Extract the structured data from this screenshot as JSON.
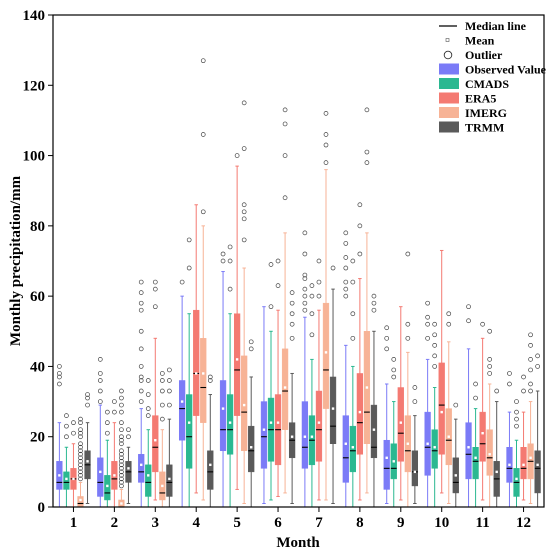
{
  "colors": {
    "observed": "#7b7bf7",
    "cmads": "#2bb891",
    "era5": "#f47a72",
    "imerg": "#f7b396",
    "trmm": "#5a5a5a",
    "mean_marker": "#ffffff",
    "outlier": "#444444"
  },
  "chart_data": {
    "type": "box",
    "title": "",
    "xlabel": "Month",
    "ylabel": "Monthly precipitation/mm",
    "ylim": [
      0,
      140
    ],
    "yticks": [
      0,
      20,
      40,
      60,
      80,
      100,
      120,
      140
    ],
    "grid": false,
    "legend_position": "top-right",
    "legend": [
      {
        "label": "Median line",
        "kind": "line"
      },
      {
        "label": "Mean",
        "kind": "mean"
      },
      {
        "label": "Outlier",
        "kind": "outlier"
      },
      {
        "label": "Observed Value",
        "kind": "box",
        "color_key": "observed"
      },
      {
        "label": "CMADS",
        "kind": "box",
        "color_key": "cmads"
      },
      {
        "label": "ERA5",
        "kind": "box",
        "color_key": "era5"
      },
      {
        "label": "IMERG",
        "kind": "box",
        "color_key": "imerg"
      },
      {
        "label": "TRMM",
        "kind": "box",
        "color_key": "trmm"
      }
    ],
    "categories": [
      "1",
      "2",
      "3",
      "4",
      "5",
      "6",
      "7",
      "8",
      "9",
      "10",
      "11",
      "12"
    ],
    "series": [
      {
        "name": "Observed Value",
        "color_key": "observed",
        "boxes": [
          {
            "whislo": 0,
            "q1": 5,
            "med": 7,
            "q3": 13,
            "whishi": 24,
            "mean": 9,
            "outliers": [
              35,
              37,
              38,
              40
            ]
          },
          {
            "whislo": 0,
            "q1": 3,
            "med": 7,
            "q3": 14,
            "whishi": 29,
            "mean": 10,
            "outliers": [
              30,
              33,
              36,
              38,
              42
            ]
          },
          {
            "whislo": 0,
            "q1": 7,
            "med": 10,
            "q3": 15,
            "whishi": 28,
            "mean": 12,
            "outliers": [
              30,
              33,
              36,
              37,
              40,
              45,
              50,
              56,
              58,
              61,
              64
            ]
          },
          {
            "whislo": 0,
            "q1": 19,
            "med": 28,
            "q3": 36,
            "whishi": 60,
            "mean": 30,
            "outliers": [
              64
            ]
          },
          {
            "whislo": 0,
            "q1": 16,
            "med": 22,
            "q3": 36,
            "whishi": 67,
            "mean": 28,
            "outliers": [
              70,
              72
            ]
          },
          {
            "whislo": 1,
            "q1": 11,
            "med": 20,
            "q3": 30,
            "whishi": 57,
            "mean": 22,
            "outliers": []
          },
          {
            "whislo": 0,
            "q1": 11,
            "med": 17,
            "q3": 30,
            "whishi": 54,
            "mean": 20,
            "outliers": [
              56,
              58,
              60,
              62,
              65,
              66,
              72,
              78
            ]
          },
          {
            "whislo": 0,
            "q1": 7,
            "med": 14,
            "q3": 26,
            "whishi": 46,
            "mean": 18,
            "outliers": [
              60,
              62,
              64,
              68,
              71,
              75,
              78
            ]
          },
          {
            "whislo": 1,
            "q1": 5,
            "med": 11,
            "q3": 19,
            "whishi": 35,
            "mean": 14,
            "outliers": [
              45,
              48,
              51
            ]
          },
          {
            "whislo": 0,
            "q1": 9,
            "med": 17,
            "q3": 27,
            "whishi": 42,
            "mean": 18,
            "outliers": [
              48,
              52,
              54,
              58
            ]
          },
          {
            "whislo": 0,
            "q1": 8,
            "med": 15,
            "q3": 24,
            "whishi": 45,
            "mean": 17,
            "outliers": [
              53,
              57
            ]
          },
          {
            "whislo": 0,
            "q1": 7,
            "med": 11,
            "q3": 17,
            "whishi": 27,
            "mean": 12,
            "outliers": [
              35,
              38
            ]
          }
        ]
      },
      {
        "name": "CMADS",
        "color_key": "cmads",
        "boxes": [
          {
            "whislo": 0,
            "q1": 5,
            "med": 7,
            "q3": 10,
            "whishi": 17,
            "mean": 8,
            "outliers": [
              20,
              23,
              26
            ]
          },
          {
            "whislo": 0,
            "q1": 2,
            "med": 4,
            "q3": 9,
            "whishi": 19,
            "mean": 6,
            "outliers": [
              21,
              24,
              27
            ]
          },
          {
            "whislo": 0,
            "q1": 3,
            "med": 7,
            "q3": 12,
            "whishi": 22,
            "mean": 9,
            "outliers": [
              26,
              28,
              32,
              36
            ]
          },
          {
            "whislo": 0,
            "q1": 11,
            "med": 20,
            "q3": 32,
            "whishi": 55,
            "mean": 24,
            "outliers": [
              68,
              76
            ]
          },
          {
            "whislo": 0,
            "q1": 15,
            "med": 22,
            "q3": 32,
            "whishi": 55,
            "mean": 24,
            "outliers": [
              62,
              70,
              74
            ]
          },
          {
            "whislo": 2,
            "q1": 13,
            "med": 22,
            "q3": 31,
            "whishi": 50,
            "mean": 24,
            "outliers": [
              57,
              69
            ]
          },
          {
            "whislo": 0,
            "q1": 12,
            "med": 19,
            "q3": 26,
            "whishi": 42,
            "mean": 20,
            "outliers": [
              49,
              55,
              60,
              63
            ]
          },
          {
            "whislo": 0,
            "q1": 10,
            "med": 16,
            "q3": 23,
            "whishi": 40,
            "mean": 17,
            "outliers": [
              48,
              55,
              64,
              70
            ]
          },
          {
            "whislo": 0,
            "q1": 8,
            "med": 11,
            "q3": 18,
            "whishi": 30,
            "mean": 13,
            "outliers": [
              37,
              39,
              42
            ]
          },
          {
            "whislo": 0,
            "q1": 11,
            "med": 16,
            "q3": 22,
            "whishi": 34,
            "mean": 17,
            "outliers": [
              40,
              43,
              46,
              49,
              52
            ]
          },
          {
            "whislo": 0,
            "q1": 8,
            "med": 13,
            "q3": 17,
            "whishi": 28,
            "mean": 14,
            "outliers": [
              31,
              35
            ]
          },
          {
            "whislo": 0,
            "q1": 3,
            "med": 7,
            "q3": 11,
            "whishi": 19,
            "mean": 8,
            "outliers": [
              23,
              25,
              27,
              30
            ]
          }
        ]
      },
      {
        "name": "ERA5",
        "color_key": "era5",
        "boxes": [
          {
            "whislo": 0,
            "q1": 5,
            "med": 8,
            "q3": 11,
            "whishi": 18,
            "mean": 8,
            "outliers": [
              21,
              24
            ]
          },
          {
            "whislo": 0,
            "q1": 5,
            "med": 8,
            "q3": 13,
            "whishi": 24,
            "mean": 9,
            "outliers": [
              27,
              30
            ]
          },
          {
            "whislo": 2,
            "q1": 10,
            "med": 17,
            "q3": 26,
            "whishi": 48,
            "mean": 19,
            "outliers": [
              57,
              62,
              64
            ]
          },
          {
            "whislo": 4,
            "q1": 26,
            "med": 38,
            "q3": 56,
            "whishi": 86,
            "mean": 38,
            "outliers": []
          },
          {
            "whislo": 5,
            "q1": 26,
            "med": 39,
            "q3": 55,
            "whishi": 97,
            "mean": 42,
            "outliers": [
              100
            ]
          },
          {
            "whislo": 3,
            "q1": 12,
            "med": 22,
            "q3": 32,
            "whishi": 56,
            "mean": 24,
            "outliers": [
              63,
              70
            ]
          },
          {
            "whislo": 2,
            "q1": 13,
            "med": 22,
            "q3": 33,
            "whishi": 56,
            "mean": 24,
            "outliers": [
              60,
              64,
              70
            ]
          },
          {
            "whislo": 2,
            "q1": 15,
            "med": 24,
            "q3": 38,
            "whishi": 65,
            "mean": 27,
            "outliers": [
              72,
              80,
              86
            ]
          },
          {
            "whislo": 2,
            "q1": 13,
            "med": 21,
            "q3": 34,
            "whishi": 57,
            "mean": 24,
            "outliers": []
          },
          {
            "whislo": 4,
            "q1": 15,
            "med": 29,
            "q3": 41,
            "whishi": 73,
            "mean": 27,
            "outliers": []
          },
          {
            "whislo": 2,
            "q1": 13,
            "med": 18,
            "q3": 27,
            "whishi": 48,
            "mean": 21,
            "outliers": [
              52
            ]
          },
          {
            "whislo": 2,
            "q1": 8,
            "med": 11,
            "q3": 17,
            "whishi": 27,
            "mean": 12,
            "outliers": [
              33,
              37
            ]
          }
        ]
      },
      {
        "name": "IMERG",
        "color_key": "imerg",
        "boxes": [
          {
            "whislo": 0,
            "q1": 0,
            "med": 1,
            "q3": 3,
            "whishi": 7,
            "mean": 2,
            "outliers": [
              8,
              9,
              10,
              11,
              12,
              13,
              14,
              15,
              16,
              17,
              18,
              20,
              21,
              22,
              24,
              25
            ]
          },
          {
            "whislo": 0,
            "q1": 0,
            "med": 0,
            "q3": 2,
            "whishi": 5,
            "mean": 1,
            "outliers": [
              6,
              7,
              8,
              9,
              10,
              11,
              12,
              13,
              14,
              15,
              16,
              18,
              19,
              20,
              22,
              24,
              27,
              29,
              31,
              33
            ]
          },
          {
            "whislo": 0,
            "q1": 2,
            "med": 4,
            "q3": 10,
            "whishi": 22,
            "mean": 6,
            "outliers": [
              25,
              29,
              33,
              36,
              38
            ]
          },
          {
            "whislo": 2,
            "q1": 24,
            "med": 34,
            "q3": 48,
            "whishi": 80,
            "mean": 38,
            "outliers": [
              84,
              106,
              127
            ]
          },
          {
            "whislo": 1,
            "q1": 16,
            "med": 27,
            "q3": 43,
            "whishi": 68,
            "mean": 29,
            "outliers": [
              76,
              82,
              84,
              86,
              102,
              115
            ]
          },
          {
            "whislo": 4,
            "q1": 22,
            "med": 33,
            "q3": 45,
            "whishi": 78,
            "mean": 34,
            "outliers": [
              88,
              100,
              109,
              113
            ]
          },
          {
            "whislo": 2,
            "q1": 28,
            "med": 39,
            "q3": 58,
            "whishi": 96,
            "mean": 44,
            "outliers": [
              98,
              103,
              106,
              112
            ]
          },
          {
            "whislo": 4,
            "q1": 18,
            "med": 27,
            "q3": 50,
            "whishi": 78,
            "mean": 34,
            "outliers": [
              98,
              101,
              113
            ]
          },
          {
            "whislo": 0,
            "q1": 10,
            "med": 16,
            "q3": 26,
            "whishi": 44,
            "mean": 18,
            "outliers": [
              48,
              52,
              72
            ]
          },
          {
            "whislo": 1,
            "q1": 12,
            "med": 19,
            "q3": 28,
            "whishi": 47,
            "mean": 20,
            "outliers": [
              52,
              55
            ]
          },
          {
            "whislo": 0,
            "q1": 9,
            "med": 14,
            "q3": 22,
            "whishi": 35,
            "mean": 15,
            "outliers": [
              38,
              40,
              42,
              50
            ]
          },
          {
            "whislo": 1,
            "q1": 8,
            "med": 13,
            "q3": 18,
            "whishi": 30,
            "mean": 14,
            "outliers": [
              33,
              35,
              39,
              42,
              46,
              49
            ]
          }
        ]
      },
      {
        "name": "TRMM",
        "color_key": "trmm",
        "boxes": [
          {
            "whislo": 1,
            "q1": 8,
            "med": 12,
            "q3": 16,
            "whishi": 24,
            "mean": 13,
            "outliers": [
              29,
              31,
              32
            ]
          },
          {
            "whislo": 1,
            "q1": 7,
            "med": 10,
            "q3": 13,
            "whishi": 17,
            "mean": 11,
            "outliers": [
              20,
              22
            ]
          },
          {
            "whislo": 0,
            "q1": 3,
            "med": 7,
            "q3": 12,
            "whishi": 25,
            "mean": 8,
            "outliers": [
              29,
              33,
              36,
              39
            ]
          },
          {
            "whislo": 0,
            "q1": 5,
            "med": 10,
            "q3": 16,
            "whishi": 32,
            "mean": 12,
            "outliers": [
              36,
              37
            ]
          },
          {
            "whislo": 0,
            "q1": 10,
            "med": 16,
            "q3": 23,
            "whishi": 37,
            "mean": 17,
            "outliers": [
              45,
              47
            ]
          },
          {
            "whislo": 1,
            "q1": 14,
            "med": 19,
            "q3": 24,
            "whishi": 38,
            "mean": 20,
            "outliers": [
              48,
              52,
              55,
              58,
              61
            ]
          },
          {
            "whislo": 1,
            "q1": 18,
            "med": 23,
            "q3": 37,
            "whishi": 62,
            "mean": 28,
            "outliers": [
              68
            ]
          },
          {
            "whislo": 0,
            "q1": 14,
            "med": 17,
            "q3": 29,
            "whishi": 50,
            "mean": 22,
            "outliers": [
              56,
              58,
              60
            ]
          },
          {
            "whislo": 1,
            "q1": 6,
            "med": 10,
            "q3": 16,
            "whishi": 26,
            "mean": 10,
            "outliers": [
              30,
              34
            ]
          },
          {
            "whislo": 0,
            "q1": 4,
            "med": 7,
            "q3": 14,
            "whishi": 25,
            "mean": 9,
            "outliers": [
              29
            ]
          },
          {
            "whislo": 0,
            "q1": 3,
            "med": 8,
            "q3": 13,
            "whishi": 30,
            "mean": 10,
            "outliers": [
              33
            ]
          },
          {
            "whislo": 0,
            "q1": 4,
            "med": 11,
            "q3": 16,
            "whishi": 33,
            "mean": 12,
            "outliers": [
              40,
              43
            ]
          }
        ]
      }
    ]
  }
}
